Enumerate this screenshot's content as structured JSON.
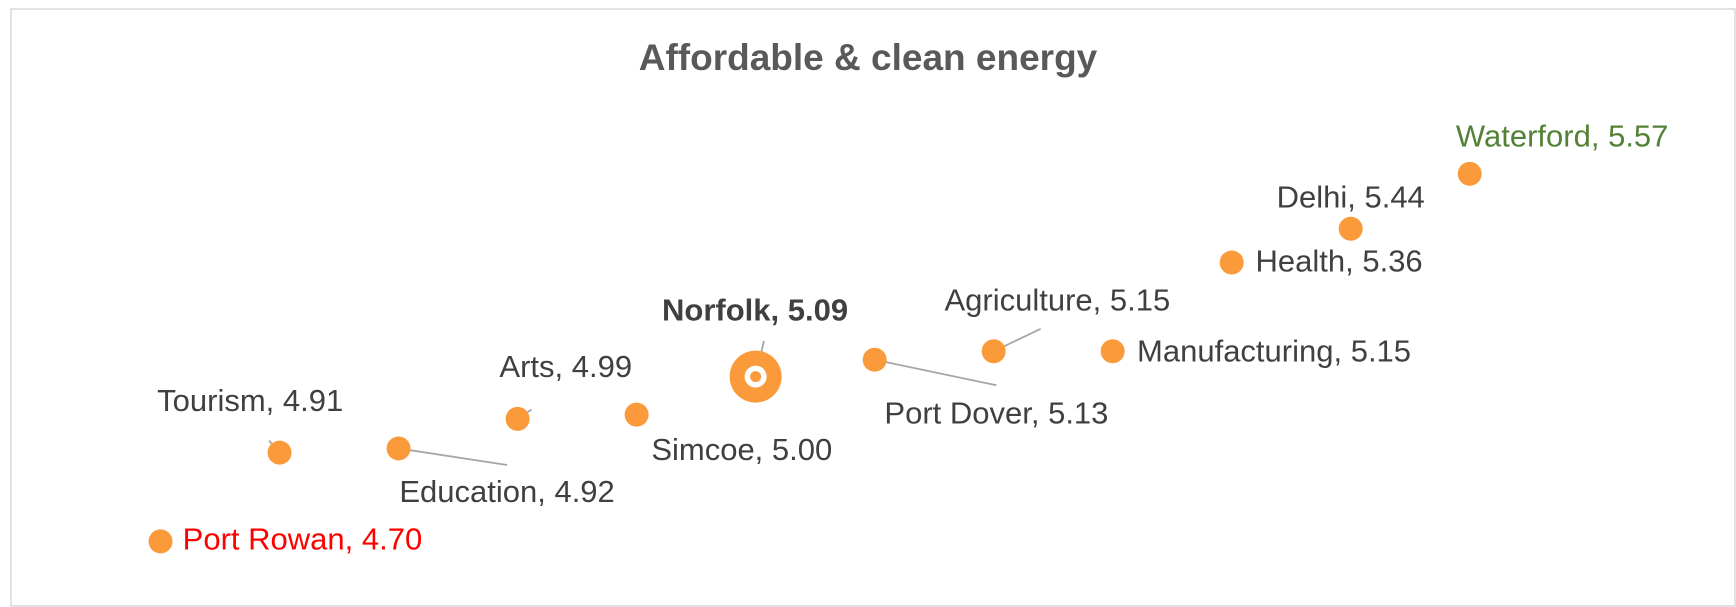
{
  "chart_data": {
    "type": "dot",
    "title": "Affordable & clean energy",
    "values": [
      4.7,
      4.91,
      4.92,
      4.99,
      5.0,
      5.09,
      5.13,
      5.15,
      5.15,
      5.36,
      5.44,
      5.57
    ],
    "value_labels": [
      "Port Rowan, 4.70",
      "Tourism, 4.91",
      "Education, 4.92",
      "Arts, 4.99",
      "Simcoe, 5.00",
      "Norfolk, 5.09",
      "Port Dover, 5.13",
      "Agriculture, 5.15",
      "Manufacturing, 5.15",
      "Health, 5.36",
      "Delhi, 5.44",
      "Waterford, 5.57"
    ],
    "color": "#fa9a3a",
    "label_colors": [
      "#ff0000",
      "#404040",
      "#404040",
      "#404040",
      "#404040",
      "#404040",
      "#404040",
      "#404040",
      "#404040",
      "#404040",
      "#404040",
      "#538135"
    ],
    "highlight_index": 5
  }
}
